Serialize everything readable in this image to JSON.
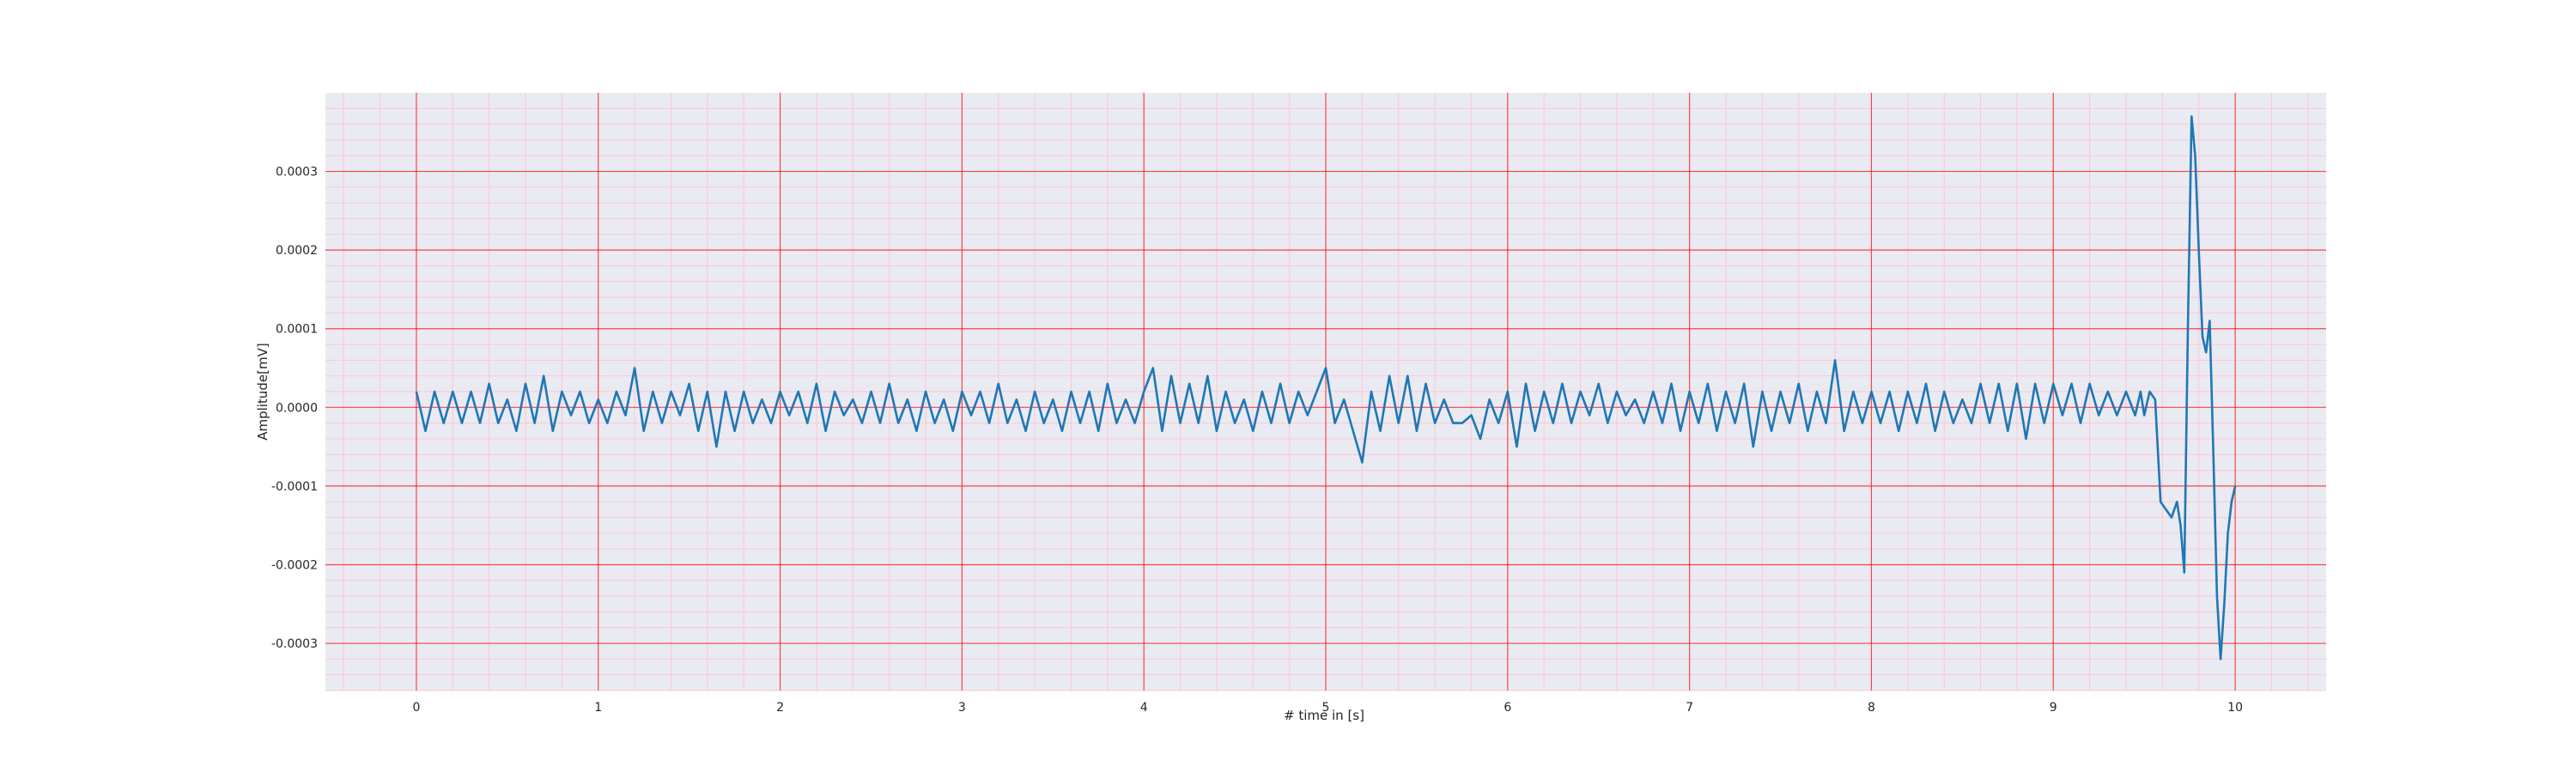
{
  "chart_data": {
    "type": "line",
    "title": "",
    "xlabel": "# time in [s]",
    "ylabel": "Amplitude[mV]",
    "xlim": [
      -0.5,
      10.5
    ],
    "ylim": [
      -0.00036,
      0.0004
    ],
    "x_ticks": [
      0,
      1,
      2,
      3,
      4,
      5,
      6,
      7,
      8,
      9,
      10
    ],
    "x_tick_labels": [
      "0",
      "1",
      "2",
      "3",
      "4",
      "5",
      "6",
      "7",
      "8",
      "9",
      "10"
    ],
    "y_ticks": [
      -0.0003,
      -0.0002,
      -0.0001,
      0.0,
      0.0001,
      0.0002,
      0.0003
    ],
    "y_tick_labels": [
      "-0.0003",
      "-0.0002",
      "-0.0001",
      "0.0000",
      "0.0001",
      "0.0002",
      "0.0003"
    ],
    "grid": "on (major and minor, red)",
    "legend": "none",
    "colors": {
      "background": "#eaeaf2",
      "line": "#1f77b4",
      "major_grid": "#ff0000",
      "minor_grid": "#ffc0cb"
    },
    "series": [
      {
        "x": [
          0.0,
          0.05,
          0.1,
          0.15,
          0.2,
          0.25,
          0.3,
          0.35,
          0.4,
          0.45,
          0.5,
          0.55,
          0.6,
          0.65,
          0.7,
          0.75,
          0.8,
          0.85,
          0.9,
          0.95,
          1.0,
          1.05,
          1.1,
          1.15,
          1.2,
          1.25,
          1.3,
          1.35,
          1.4,
          1.45,
          1.5,
          1.55,
          1.6,
          1.65,
          1.7,
          1.75,
          1.8,
          1.85,
          1.9,
          1.95,
          2.0,
          2.05,
          2.1,
          2.15,
          2.2,
          2.25,
          2.3,
          2.35,
          2.4,
          2.45,
          2.5,
          2.55,
          2.6,
          2.65,
          2.7,
          2.75,
          2.8,
          2.85,
          2.9,
          2.95,
          3.0,
          3.05,
          3.1,
          3.15,
          3.2,
          3.25,
          3.3,
          3.35,
          3.4,
          3.45,
          3.5,
          3.55,
          3.6,
          3.65,
          3.7,
          3.75,
          3.8,
          3.85,
          3.9,
          3.95,
          4.0,
          4.05,
          4.1,
          4.15,
          4.2,
          4.25,
          4.3,
          4.35,
          4.4,
          4.45,
          4.5,
          4.55,
          4.6,
          4.65,
          4.7,
          4.75,
          4.8,
          4.85,
          4.9,
          4.95,
          5.0,
          5.05,
          5.1,
          5.15,
          5.2,
          5.25,
          5.3,
          5.35,
          5.4,
          5.45,
          5.5,
          5.55,
          5.6,
          5.65,
          5.7,
          5.75,
          5.8,
          5.85,
          5.9,
          5.95,
          6.0,
          6.05,
          6.1,
          6.15,
          6.2,
          6.25,
          6.3,
          6.35,
          6.4,
          6.45,
          6.5,
          6.55,
          6.6,
          6.65,
          6.7,
          6.75,
          6.8,
          6.85,
          6.9,
          6.95,
          7.0,
          7.05,
          7.1,
          7.15,
          7.2,
          7.25,
          7.3,
          7.35,
          7.4,
          7.45,
          7.5,
          7.55,
          7.6,
          7.65,
          7.7,
          7.75,
          7.8,
          7.85,
          7.9,
          7.95,
          8.0,
          8.05,
          8.1,
          8.15,
          8.2,
          8.25,
          8.3,
          8.35,
          8.4,
          8.45,
          8.5,
          8.55,
          8.6,
          8.65,
          8.7,
          8.75,
          8.8,
          8.85,
          8.9,
          8.95,
          9.0,
          9.05,
          9.1,
          9.15,
          9.2,
          9.25,
          9.3,
          9.35,
          9.4,
          9.45,
          9.48,
          9.5,
          9.53,
          9.56,
          9.59,
          9.62,
          9.65,
          9.68,
          9.7,
          9.72,
          9.74,
          9.76,
          9.78,
          9.8,
          9.82,
          9.84,
          9.86,
          9.88,
          9.9,
          9.92,
          9.94,
          9.96,
          9.98,
          10.0
        ],
        "y": [
          2e-05,
          -3e-05,
          2e-05,
          -2e-05,
          2e-05,
          -2e-05,
          2e-05,
          -2e-05,
          3e-05,
          -2e-05,
          1e-05,
          -3e-05,
          3e-05,
          -2e-05,
          4e-05,
          -3e-05,
          2e-05,
          -1e-05,
          2e-05,
          -2e-05,
          1e-05,
          -2e-05,
          2e-05,
          -1e-05,
          5e-05,
          -3e-05,
          2e-05,
          -2e-05,
          2e-05,
          -1e-05,
          3e-05,
          -3e-05,
          2e-05,
          -5e-05,
          2e-05,
          -3e-05,
          2e-05,
          -2e-05,
          1e-05,
          -2e-05,
          2e-05,
          -1e-05,
          2e-05,
          -2e-05,
          3e-05,
          -3e-05,
          2e-05,
          -1e-05,
          1e-05,
          -2e-05,
          2e-05,
          -2e-05,
          3e-05,
          -2e-05,
          1e-05,
          -3e-05,
          2e-05,
          -2e-05,
          1e-05,
          -3e-05,
          2e-05,
          -1e-05,
          2e-05,
          -2e-05,
          3e-05,
          -2e-05,
          1e-05,
          -3e-05,
          2e-05,
          -2e-05,
          1e-05,
          -3e-05,
          2e-05,
          -2e-05,
          2e-05,
          -3e-05,
          3e-05,
          -2e-05,
          1e-05,
          -2e-05,
          2e-05,
          5e-05,
          -3e-05,
          4e-05,
          -2e-05,
          3e-05,
          -2e-05,
          4e-05,
          -3e-05,
          2e-05,
          -2e-05,
          1e-05,
          -3e-05,
          2e-05,
          -2e-05,
          3e-05,
          -2e-05,
          2e-05,
          -1e-05,
          2e-05,
          5e-05,
          -2e-05,
          1e-05,
          -3e-05,
          -7e-05,
          2e-05,
          -3e-05,
          4e-05,
          -2e-05,
          4e-05,
          -3e-05,
          3e-05,
          -2e-05,
          1e-05,
          -2e-05,
          -2e-05,
          -1e-05,
          -4e-05,
          1e-05,
          -2e-05,
          2e-05,
          -5e-05,
          3e-05,
          -3e-05,
          2e-05,
          -2e-05,
          3e-05,
          -2e-05,
          2e-05,
          -1e-05,
          3e-05,
          -2e-05,
          2e-05,
          -1e-05,
          1e-05,
          -2e-05,
          2e-05,
          -2e-05,
          3e-05,
          -3e-05,
          2e-05,
          -2e-05,
          3e-05,
          -3e-05,
          2e-05,
          -2e-05,
          3e-05,
          -5e-05,
          2e-05,
          -3e-05,
          2e-05,
          -2e-05,
          3e-05,
          -3e-05,
          2e-05,
          -2e-05,
          6e-05,
          -3e-05,
          2e-05,
          -2e-05,
          2e-05,
          -2e-05,
          2e-05,
          -3e-05,
          2e-05,
          -2e-05,
          3e-05,
          -3e-05,
          2e-05,
          -2e-05,
          1e-05,
          -2e-05,
          3e-05,
          -2e-05,
          3e-05,
          -3e-05,
          3e-05,
          -4e-05,
          3e-05,
          -2e-05,
          3e-05,
          -1e-05,
          3e-05,
          -2e-05,
          3e-05,
          -1e-05,
          2e-05,
          -1e-05,
          2e-05,
          -1e-05,
          2e-05,
          -1e-05,
          2e-05,
          1e-05,
          -0.00012,
          -0.00013,
          -0.00014,
          -0.00012,
          -0.00015,
          -0.00021,
          0.0001,
          0.00037,
          0.00032,
          0.0002,
          9e-05,
          7e-05,
          0.00011,
          -6e-05,
          -0.00024,
          -0.00032,
          -0.00025,
          -0.00016,
          -0.00012,
          -0.0001
        ]
      }
    ]
  }
}
